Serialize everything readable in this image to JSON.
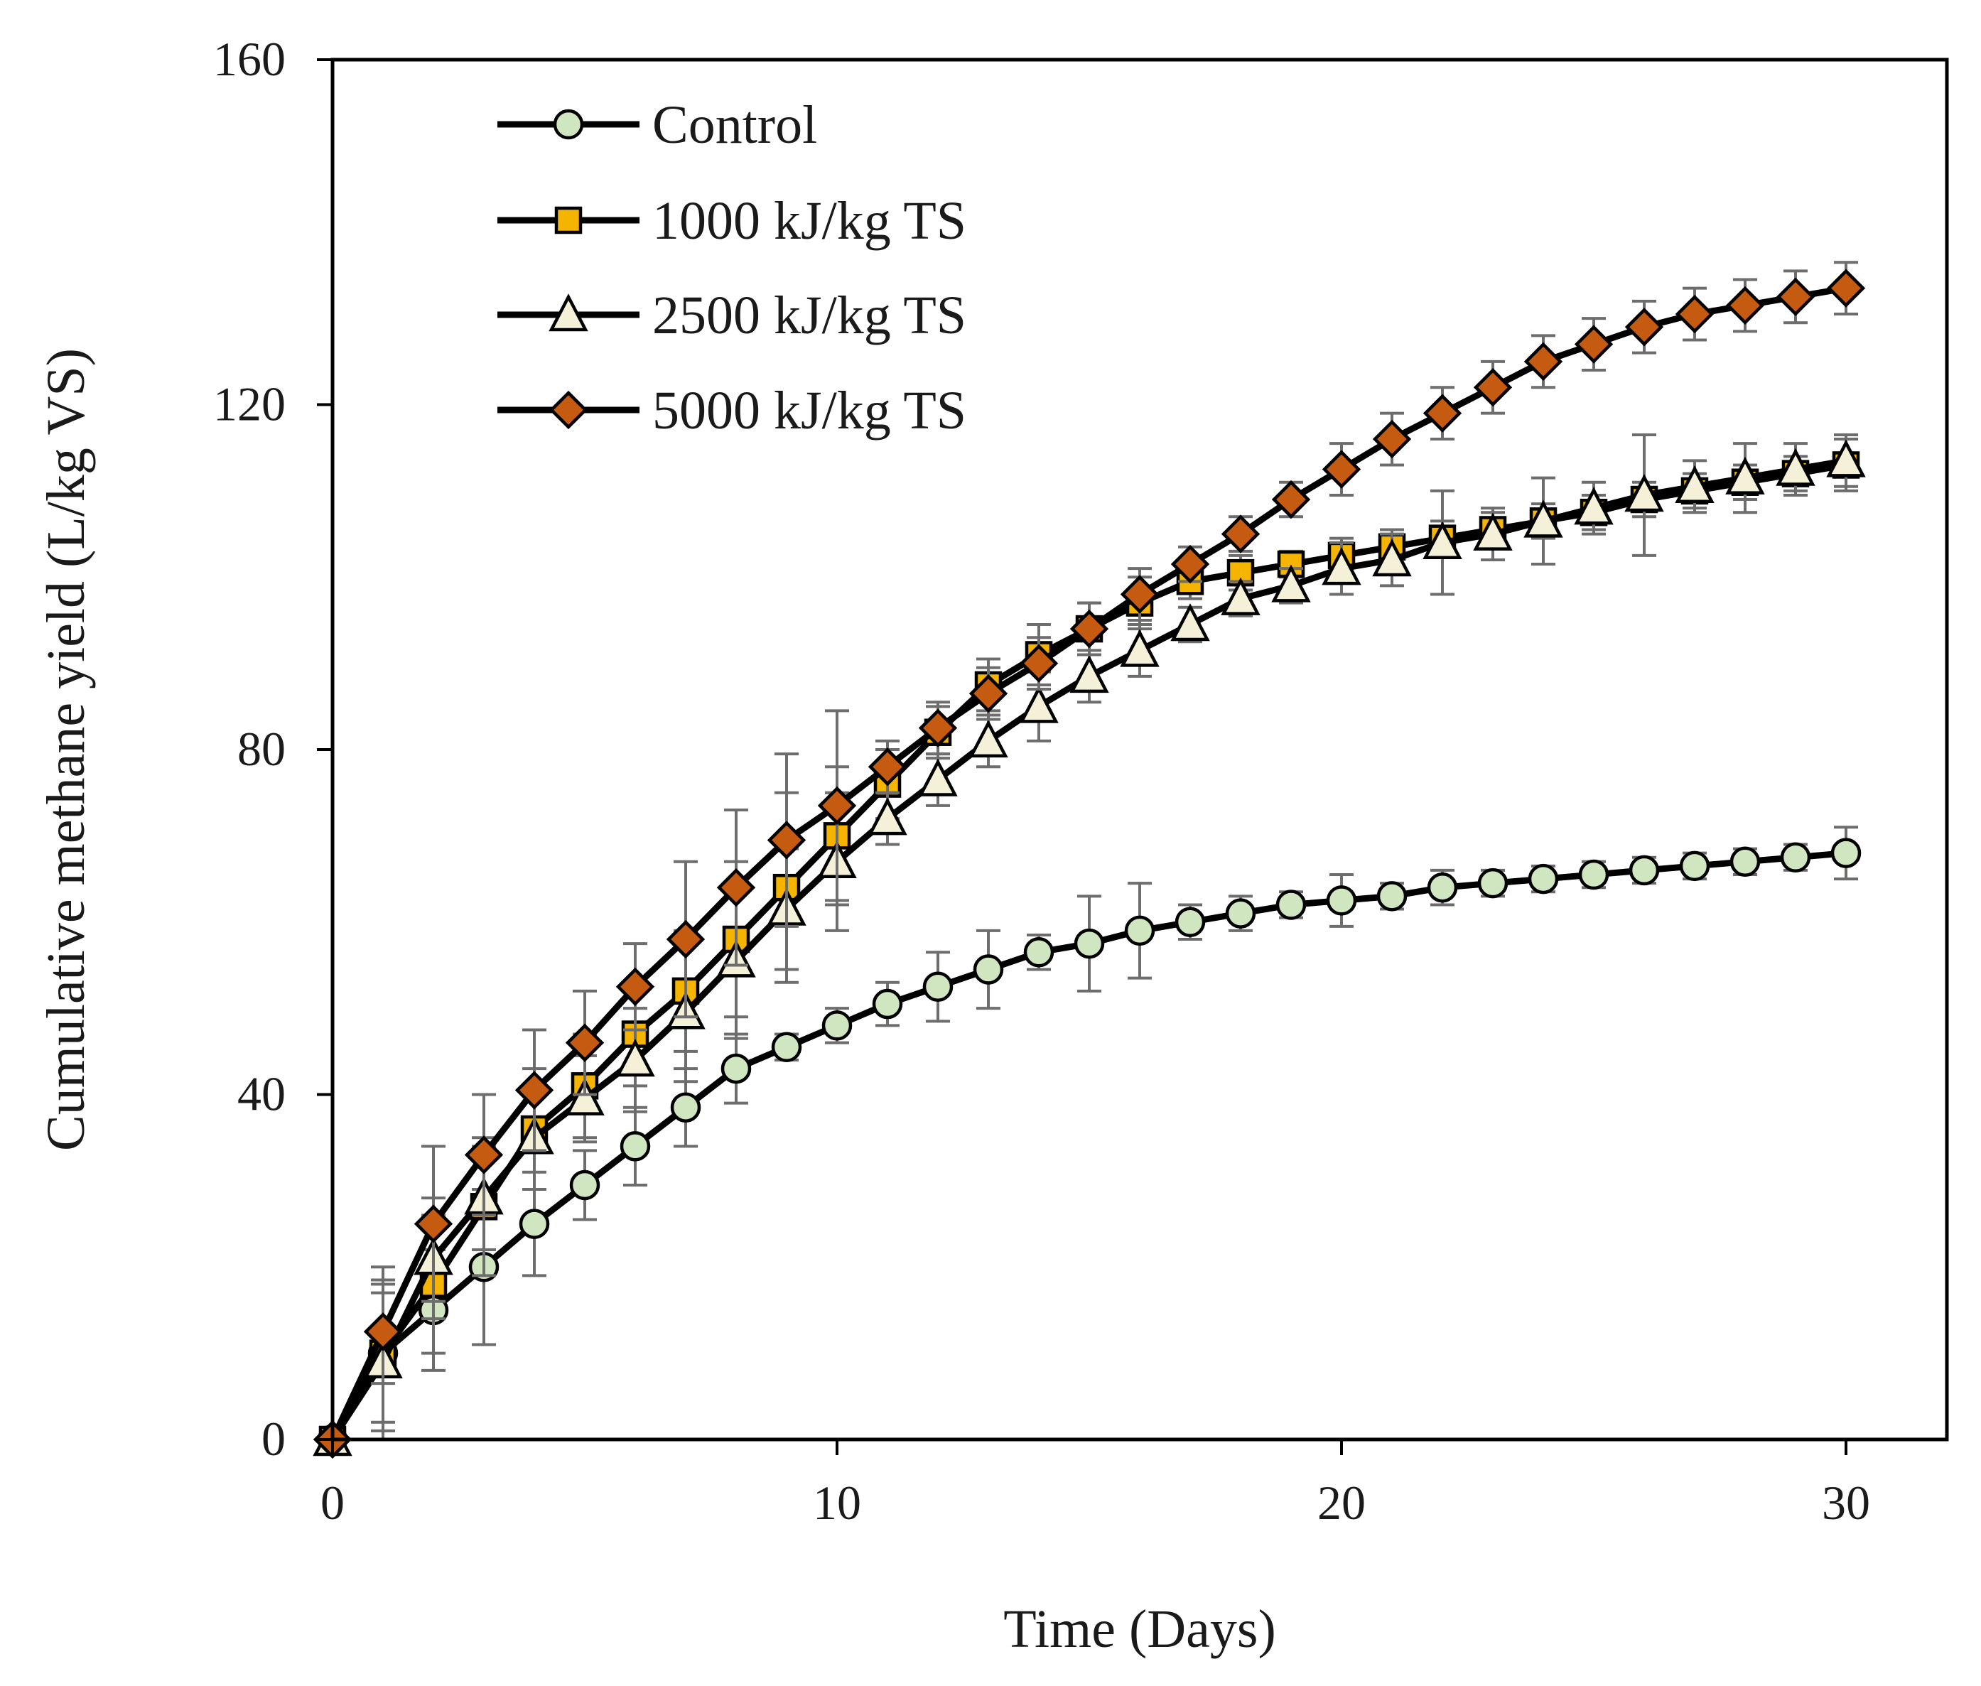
{
  "chart_data": {
    "type": "line",
    "title": "",
    "xlabel": "Time (Days)",
    "ylabel": "Cumulative methane yield (L/kg VS)",
    "xlim": [
      0,
      32
    ],
    "ylim": [
      0,
      160
    ],
    "xticks": [
      0,
      10,
      20,
      30
    ],
    "yticks": [
      0,
      40,
      80,
      120,
      160
    ],
    "x_tick_labels": [
      "0",
      "10",
      "20",
      "30"
    ],
    "y_tick_labels": [
      "0",
      "40",
      "80",
      "120",
      "160"
    ],
    "grid": false,
    "legend_position": "top-left",
    "x": [
      0,
      1,
      2,
      3,
      4,
      5,
      6,
      7,
      8,
      9,
      10,
      11,
      12,
      13,
      14,
      15,
      16,
      17,
      18,
      19,
      20,
      21,
      22,
      23,
      24,
      25,
      26,
      27,
      28,
      29,
      30
    ],
    "series": [
      {
        "name": "Control",
        "marker": "circle",
        "marker_color": "#cfe6c0",
        "values": [
          0,
          10,
          15,
          20,
          25,
          29.5,
          34,
          38.5,
          43,
          45.5,
          48,
          50.5,
          52.5,
          54.5,
          56.5,
          57.5,
          59,
          60,
          61,
          62,
          62.5,
          63,
          64,
          64.5,
          65,
          65.5,
          66,
          66.5,
          67,
          67.5,
          68
        ],
        "errors": [
          0,
          10,
          7,
          9,
          6,
          4,
          4.5,
          4.5,
          4,
          1.5,
          2,
          2.5,
          4,
          4.5,
          2,
          5.5,
          5.5,
          2,
          2,
          1.5,
          3,
          1.5,
          2,
          1.5,
          1.5,
          1.5,
          1.5,
          1.5,
          1.5,
          1.5,
          3
        ]
      },
      {
        "name": "1000 kJ/kg TS",
        "marker": "square",
        "marker_color": "#f4b400",
        "values": [
          0,
          10,
          18,
          27,
          36,
          41,
          47,
          52,
          58,
          64,
          70,
          76,
          82,
          87.5,
          91,
          94,
          97,
          99.5,
          100.5,
          101.5,
          102.5,
          103.5,
          104.5,
          105.5,
          106.5,
          107.5,
          109,
          110,
          111,
          112,
          113
        ],
        "errors": [
          0,
          8,
          8,
          8,
          7,
          6,
          6,
          7,
          9,
          11,
          8,
          4,
          3,
          3,
          3.5,
          3,
          3,
          2,
          2,
          1.5,
          2,
          2,
          2,
          2,
          2,
          2,
          2,
          2,
          2,
          2,
          3
        ]
      },
      {
        "name": "2500 kJ/kg TS",
        "marker": "triangle",
        "marker_color": "#f5f0d8",
        "values": [
          0,
          9,
          21,
          28,
          35,
          39.5,
          44,
          49.5,
          55.5,
          61.5,
          67,
          72,
          76.5,
          81,
          85,
          88.5,
          91.5,
          94.5,
          97.5,
          99,
          101,
          102,
          104,
          105,
          106.5,
          108,
          109.5,
          110.5,
          111.5,
          112.5,
          113.5
        ],
        "errors": [
          0,
          8,
          7,
          6,
          6,
          5,
          6,
          8,
          9,
          7,
          8,
          3,
          3,
          3,
          4,
          3,
          3,
          2,
          2,
          2,
          3,
          3,
          6,
          3,
          5,
          3,
          7,
          3,
          4,
          3,
          3
        ]
      },
      {
        "name": "5000 kJ/kg TS",
        "marker": "diamond",
        "marker_color": "#c55a11",
        "values": [
          0,
          12.5,
          25,
          33,
          40.5,
          46,
          52.5,
          58,
          64,
          69.5,
          73.5,
          78,
          82.5,
          86.5,
          90,
          94,
          98,
          101.5,
          105,
          109,
          112.5,
          116,
          119,
          122,
          125,
          127,
          129,
          130.5,
          131.5,
          132.5,
          133.5
        ],
        "errors": [
          0,
          6,
          9,
          7,
          7,
          6,
          5,
          9,
          9,
          10,
          11,
          3,
          3,
          3,
          3,
          3,
          3,
          2,
          2,
          2,
          3,
          3,
          3,
          3,
          3,
          3,
          3,
          3,
          3,
          3,
          3
        ]
      }
    ]
  }
}
